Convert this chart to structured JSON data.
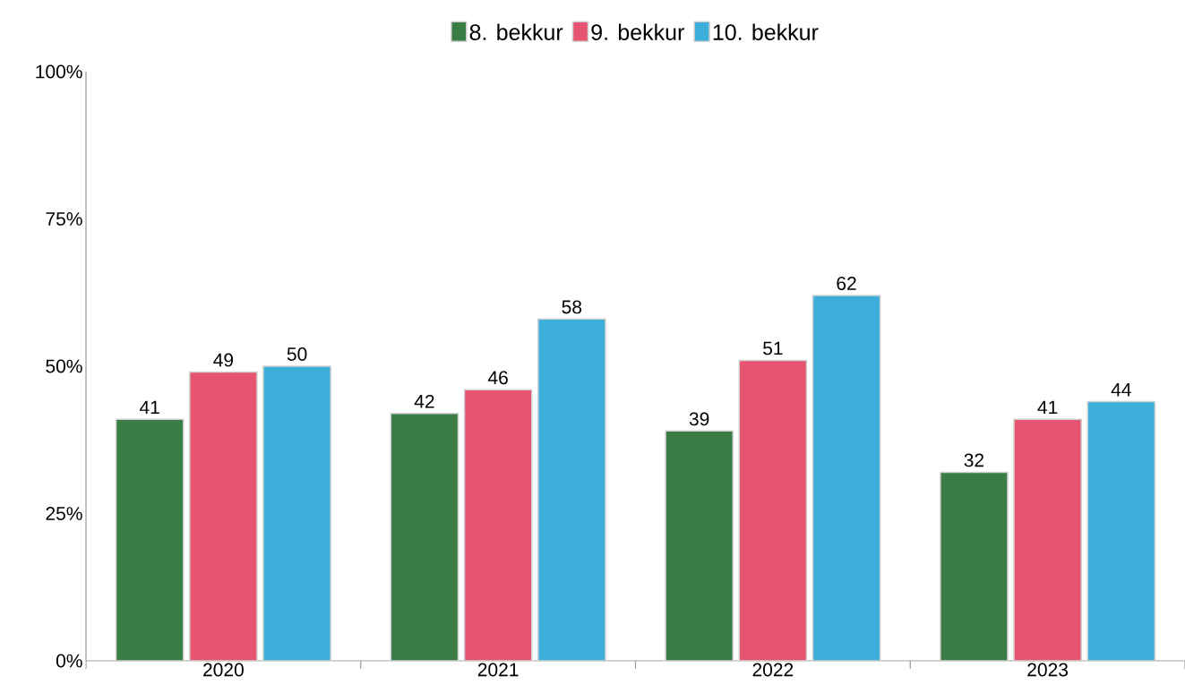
{
  "chart_data": {
    "type": "bar",
    "categories": [
      "2020",
      "2021",
      "2022",
      "2023"
    ],
    "series": [
      {
        "name": "8. bekkur",
        "color": "#3a7d44",
        "values": [
          41,
          42,
          39,
          32
        ]
      },
      {
        "name": "9. bekkur",
        "color": "#e75471",
        "values": [
          49,
          46,
          51,
          41
        ]
      },
      {
        "name": "10. bekkur",
        "color": "#3bafda",
        "values": [
          50,
          58,
          62,
          44
        ]
      }
    ],
    "ylim": [
      0,
      100
    ],
    "yticks": [
      {
        "value": 0,
        "label": "0%"
      },
      {
        "value": 25,
        "label": "25%"
      },
      {
        "value": 50,
        "label": "50%"
      },
      {
        "value": 75,
        "label": "75%"
      },
      {
        "value": 100,
        "label": "100%"
      }
    ],
    "data_labels": true,
    "legend": "top",
    "grid": false
  }
}
